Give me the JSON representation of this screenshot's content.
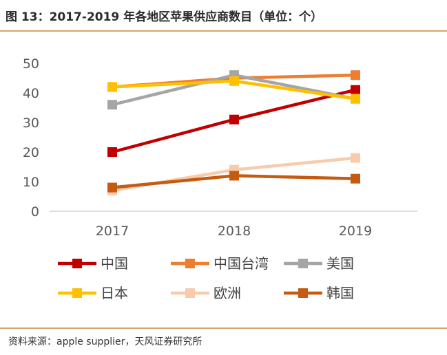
{
  "figure": {
    "title": "图 13：2017-2019 年各地区苹果供应商数目（单位：个）",
    "source": "资料来源：apple supplier，天风证券研究所"
  },
  "chart_data": {
    "type": "line",
    "title": "",
    "xlabel": "",
    "ylabel": "",
    "x": [
      "2017",
      "2018",
      "2019"
    ],
    "ylim": [
      0,
      50
    ],
    "yticks": [
      0,
      10,
      20,
      30,
      40,
      50
    ],
    "grid": false,
    "legend_position": "bottom",
    "series": [
      {
        "name": "中国",
        "color": "#c00000",
        "values": [
          20,
          31,
          41
        ]
      },
      {
        "name": "中国台湾",
        "color": "#ed7d31",
        "values": [
          42,
          45,
          46
        ]
      },
      {
        "name": "美国",
        "color": "#a5a5a5",
        "values": [
          36,
          46,
          38
        ]
      },
      {
        "name": "日本",
        "color": "#ffc000",
        "values": [
          42,
          44,
          38
        ]
      },
      {
        "name": "欧洲",
        "color": "#f8cbad",
        "values": [
          7,
          14,
          18
        ]
      },
      {
        "name": "韩国",
        "color": "#c55a11",
        "values": [
          8,
          12,
          11
        ]
      }
    ]
  }
}
